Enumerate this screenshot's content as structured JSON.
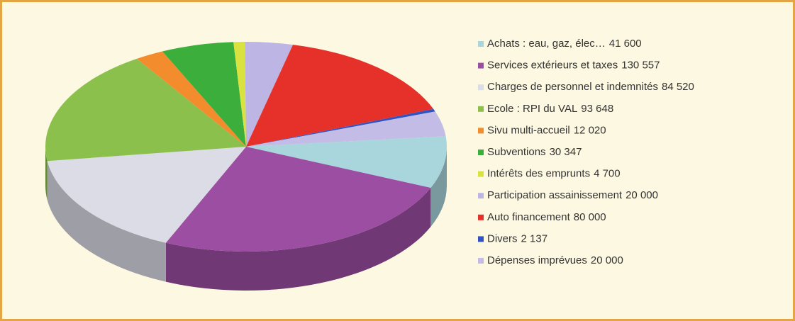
{
  "chart_data": {
    "type": "pie3d",
    "series": [
      {
        "name": "Achats : eau, gaz, élec…",
        "color": "#a9d5dd"
      },
      {
        "name": "Services extérieurs et taxes",
        "color": "#9c4ea3"
      },
      {
        "name": "Charges de personnel et indemnités",
        "color": "#dcdce6"
      },
      {
        "name": "Ecole : RPI du VAL",
        "color": "#8cc04c"
      },
      {
        "name": "Sivu multi-accueil",
        "color": "#f28c2c"
      },
      {
        "name": "Subventions",
        "color": "#3cae3c"
      },
      {
        "name": "Intérêts des emprunts",
        "color": "#d9e23e"
      },
      {
        "name": "Participation assainissement",
        "color": "#bdb5e3"
      },
      {
        "name": "Auto financement",
        "color": "#e6312a"
      },
      {
        "name": "Divers",
        "color": "#3152c2"
      },
      {
        "name": "Dépenses imprévues",
        "color": "#c3bce6"
      }
    ],
    "values": [
      41600,
      130557,
      84520,
      93648,
      12020,
      30347,
      4700,
      20000,
      80000,
      2137,
      20000
    ],
    "value_labels": [
      "41 600",
      "130 557",
      "84 520",
      "93 648",
      "12 020",
      "30 347",
      "4 700",
      "20 000",
      "80 000",
      "2 137",
      "20 000"
    ],
    "legend": "right"
  }
}
